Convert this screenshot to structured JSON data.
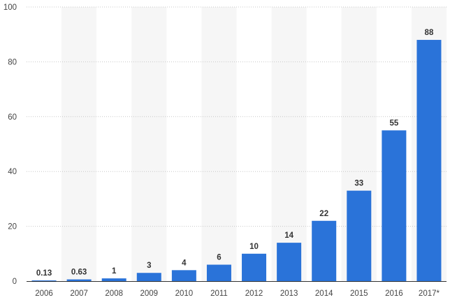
{
  "chart_data": {
    "type": "bar",
    "title": "",
    "xlabel": "",
    "ylabel": "",
    "categories": [
      "2006",
      "2007",
      "2008",
      "2009",
      "2010",
      "2011",
      "2012",
      "2013",
      "2014",
      "2015",
      "2016",
      "2017*"
    ],
    "values": [
      0.13,
      0.63,
      1,
      3,
      4,
      6,
      10,
      14,
      22,
      33,
      55,
      88
    ],
    "value_labels": [
      "0.13",
      "0.63",
      "1",
      "3",
      "4",
      "6",
      "10",
      "14",
      "22",
      "33",
      "55",
      "88"
    ],
    "ylim": [
      0,
      100
    ],
    "yticks": [
      0,
      20,
      40,
      60,
      80,
      100
    ],
    "ytick_labels": [
      "0",
      "20",
      "40",
      "60",
      "80",
      "100"
    ],
    "grid": true,
    "legend": "none",
    "bar_color": "#2a73d9",
    "alt_band_color": "#f6f6f6",
    "text_color": "#444444",
    "label_color": "#333333"
  }
}
